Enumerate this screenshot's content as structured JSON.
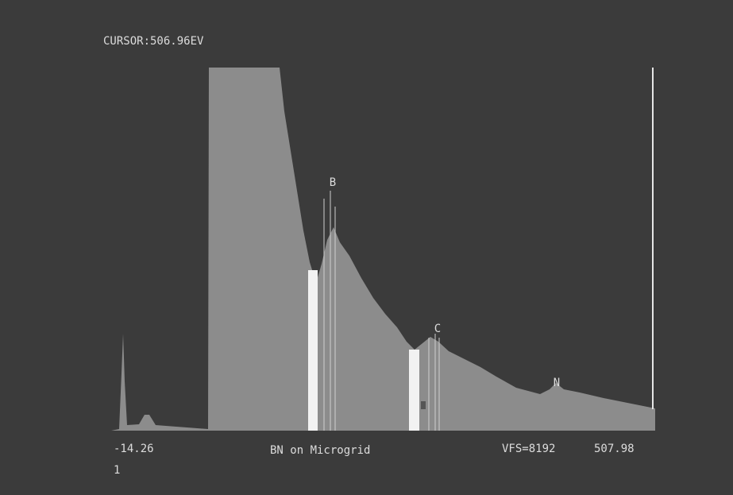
{
  "screen": {
    "cursor": "CURSOR:506.96EV",
    "peak_labels": [
      "B",
      "C",
      "N"
    ],
    "axis_start": "-14.26",
    "specimen": "BN on Microgrid",
    "vertical_full_scale": "VFS=8192",
    "axis_end": "507.98",
    "page": "1"
  }
}
